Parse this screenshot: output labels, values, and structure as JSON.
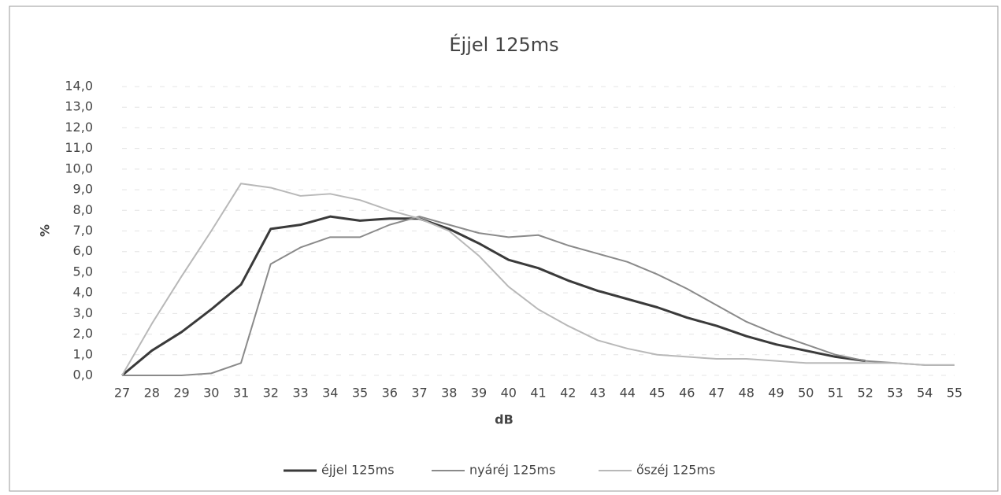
{
  "chart_data": {
    "type": "line",
    "title": "Éjjel 125ms",
    "x_label": "dB",
    "y_label": "%",
    "categories": [
      "27",
      "28",
      "29",
      "30",
      "31",
      "32",
      "33",
      "34",
      "35",
      "36",
      "37",
      "38",
      "39",
      "40",
      "41",
      "42",
      "43",
      "44",
      "45",
      "46",
      "47",
      "48",
      "49",
      "50",
      "51",
      "52",
      "53",
      "54",
      "55"
    ],
    "series": [
      {
        "name": "éjjel 125ms",
        "color": "#3a3a3a",
        "width": 3,
        "values": [
          0,
          1.2,
          2.1,
          3.2,
          4.4,
          7.1,
          7.3,
          7.7,
          7.5,
          7.6,
          7.6,
          7.1,
          6.4,
          5.6,
          5.2,
          4.6,
          4.1,
          3.7,
          3.3,
          2.8,
          2.4,
          1.9,
          1.5,
          1.2,
          0.9,
          0.7,
          null,
          null,
          null
        ]
      },
      {
        "name": "nyáréj 125ms",
        "color": "#8a8a8a",
        "width": 2,
        "values": [
          0,
          0,
          0,
          0.1,
          0.6,
          5.4,
          6.2,
          6.7,
          6.7,
          7.3,
          7.7,
          7.3,
          6.9,
          6.7,
          6.8,
          6.3,
          5.9,
          5.5,
          4.9,
          4.2,
          3.4,
          2.6,
          2.0,
          1.5,
          1.0,
          0.7,
          0.6,
          0.5,
          0.5
        ]
      },
      {
        "name": "őszéj 125ms",
        "color": "#b8b8b8",
        "width": 2,
        "values": [
          0,
          2.5,
          4.8,
          7.0,
          9.3,
          9.1,
          8.7,
          8.8,
          8.5,
          8.0,
          7.6,
          7.0,
          5.8,
          4.3,
          3.2,
          2.4,
          1.7,
          1.3,
          1.0,
          0.9,
          0.8,
          0.8,
          0.7,
          0.6,
          0.6,
          0.6,
          0.6,
          0.5,
          0.5
        ]
      }
    ],
    "ylim": [
      0,
      14
    ],
    "yticks": [
      {
        "value": 0,
        "label": "0,0"
      },
      {
        "value": 1,
        "label": "1,0"
      },
      {
        "value": 2,
        "label": "2,0"
      },
      {
        "value": 3,
        "label": "3,0"
      },
      {
        "value": 4,
        "label": "4,0"
      },
      {
        "value": 5,
        "label": "5,0"
      },
      {
        "value": 6,
        "label": "6,0"
      },
      {
        "value": 7,
        "label": "7,0"
      },
      {
        "value": 8,
        "label": "8,0"
      },
      {
        "value": 9,
        "label": "9,0"
      },
      {
        "value": 10,
        "label": "10,0"
      },
      {
        "value": 11,
        "label": "11,0"
      },
      {
        "value": 12,
        "label": "12,0"
      },
      {
        "value": 13,
        "label": "13,0"
      },
      {
        "value": 14,
        "label": "14,0"
      }
    ],
    "grid": true,
    "legend": "bottom"
  }
}
